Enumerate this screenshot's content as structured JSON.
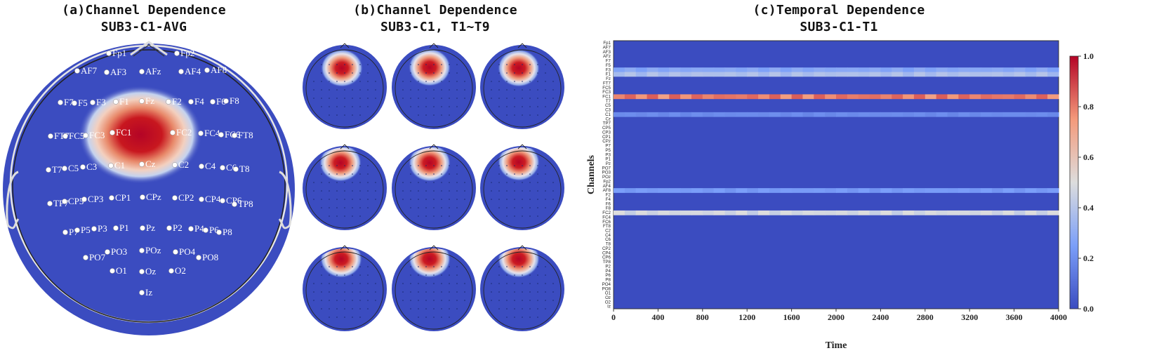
{
  "panel_a": {
    "title_line1": "(a)Channel Dependence",
    "title_line2": "SUB3-C1-AVG"
  },
  "panel_b": {
    "title_line1": "(b)Channel Dependence",
    "title_line2": "SUB3-C1, T1~T9"
  },
  "panel_c": {
    "title_line1": "(c)Temporal Dependence",
    "title_line2": "SUB3-C1-T1"
  },
  "colors": {
    "low": "#3b4cc0",
    "mid": "#dddddd",
    "high": "#b40426"
  },
  "chart_data": [
    {
      "type": "heatmap",
      "name": "topomap-average",
      "title": "(a)Channel Dependence SUB3-C1-AVG",
      "peak_channel": "FC1",
      "electrodes": [
        "Fp1",
        "Fp2",
        "AF7",
        "AF3",
        "AFz",
        "AF4",
        "AF8",
        "F7",
        "F5",
        "F3",
        "F1",
        "Fz",
        "F2",
        "F4",
        "F6",
        "F8",
        "FT7",
        "FC5",
        "FC3",
        "FC1",
        "FC2",
        "FC4",
        "FC6",
        "FT8",
        "T7",
        "C5",
        "C3",
        "C1",
        "Cz",
        "C2",
        "C4",
        "C6",
        "T8",
        "TP7",
        "CP5",
        "CP3",
        "CP1",
        "CPz",
        "CP2",
        "CP4",
        "CP6",
        "TP8",
        "P7",
        "P5",
        "P3",
        "P1",
        "Pz",
        "P2",
        "P4",
        "P6",
        "P8",
        "PO7",
        "PO3",
        "POz",
        "PO4",
        "PO8",
        "O1",
        "Oz",
        "O2",
        "Iz"
      ]
    },
    {
      "type": "heatmap",
      "name": "topomap-trials",
      "title": "(b)Channel Dependence SUB3-C1, T1~T9",
      "trials": [
        "T1",
        "T2",
        "T3",
        "T4",
        "T5",
        "T6",
        "T7",
        "T8",
        "T9"
      ],
      "peak_region": "frontal-central, left of midline"
    },
    {
      "type": "heatmap",
      "name": "temporal-dependence",
      "title": "(c)Temporal Dependence SUB3-C1-T1",
      "xlabel": "Time",
      "ylabel": "Channels",
      "xlim": [
        0,
        4000
      ],
      "x_ticks": [
        "0",
        "400",
        "800",
        "1200",
        "1600",
        "2000",
        "2400",
        "2800",
        "3200",
        "3600",
        "4000"
      ],
      "colorbar_ticks": [
        "1.0",
        "0.8",
        "0.6",
        "0.4",
        "0.2",
        "0.0"
      ],
      "colorbar_range": [
        0.0,
        1.0
      ],
      "channels": [
        "Fp1",
        "AF7",
        "AF3",
        "AFz",
        "F7",
        "F5",
        "F3",
        "F1",
        "Fz",
        "FT7",
        "FC5",
        "FC3",
        "FC1",
        "T7",
        "C5",
        "C3",
        "C1",
        "Cz",
        "TP7",
        "CP5",
        "CP3",
        "CP1",
        "CPz",
        "P7",
        "P5",
        "P3",
        "P1",
        "Pz",
        "PO7",
        "PO3",
        "POz",
        "Fp2",
        "AF4",
        "AF8",
        "F2",
        "F4",
        "F6",
        "F8",
        "FC2",
        "FC4",
        "FC6",
        "FT8",
        "C2",
        "C4",
        "C6",
        "T8",
        "CP2",
        "CP4",
        "CP6",
        "TP8",
        "P2",
        "P4",
        "P6",
        "P8",
        "PO4",
        "PO8",
        "O1",
        "Oz",
        "O2",
        "Iz"
      ],
      "highlighted_rows": [
        {
          "channel": "FC1",
          "level": 0.85
        },
        {
          "channel": "FC2",
          "level": 0.5
        },
        {
          "channel": "F1",
          "level": 0.4
        },
        {
          "channel": "F3",
          "level": 0.3
        },
        {
          "channel": "AF8",
          "level": 0.25
        },
        {
          "channel": "C1",
          "level": 0.2
        }
      ]
    }
  ]
}
